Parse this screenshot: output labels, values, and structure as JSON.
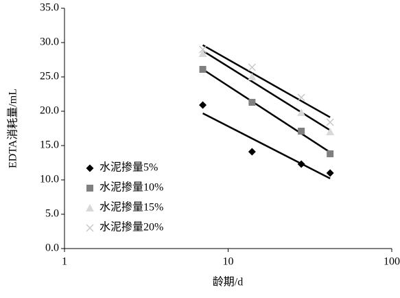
{
  "chart_data": {
    "type": "scatter",
    "xlabel": "龄期/d",
    "ylabel": "EDTA消耗量/mL",
    "x": [
      7,
      14,
      28,
      42
    ],
    "series": [
      {
        "name": "水泥掺量5%",
        "color": "#000000",
        "marker": "diamond",
        "values": [
          20.9,
          14.1,
          12.3,
          11.0
        ]
      },
      {
        "name": "水泥掺量10%",
        "color": "#808080",
        "marker": "square",
        "values": [
          26.1,
          21.3,
          17.1,
          13.8
        ]
      },
      {
        "name": "水泥掺量15%",
        "color": "#d9d9d9",
        "marker": "triangle",
        "values": [
          28.4,
          25.0,
          19.8,
          17.0
        ]
      },
      {
        "name": "水泥掺量20%",
        "color": "#c8c8c8",
        "marker": "cross",
        "values": [
          29.0,
          26.4,
          22.0,
          18.4
        ]
      }
    ],
    "trendline": "logarithmic",
    "trendline_color": "#000000",
    "xscale": "log",
    "xlim": [
      1,
      100
    ],
    "xticks": [
      1,
      10,
      100
    ],
    "ylim": [
      0,
      35
    ],
    "yticks": [
      {
        "value": 0,
        "label": "0.0"
      },
      {
        "value": 5,
        "label": "5.0"
      },
      {
        "value": 10,
        "label": "10.0"
      },
      {
        "value": 15,
        "label": "15.0"
      },
      {
        "value": 20,
        "label": "20.0"
      },
      {
        "value": 25,
        "label": "25.0"
      },
      {
        "value": 30,
        "label": "30.0"
      },
      {
        "value": 35,
        "label": "35.0"
      }
    ],
    "legend": "lower-left"
  }
}
